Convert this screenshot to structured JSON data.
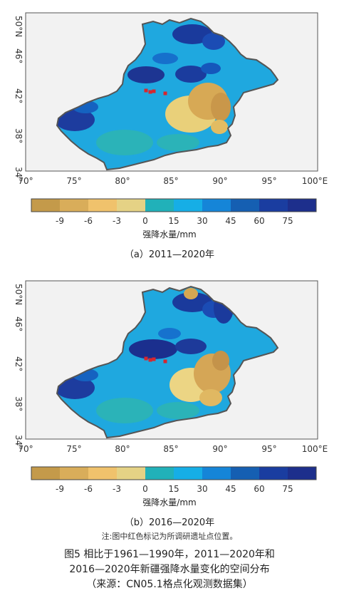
{
  "map_a": {
    "caption": "（a）2011—2020年",
    "lat_labels": [
      "50°N",
      "46°",
      "42°",
      "38°",
      "34°"
    ],
    "lon_labels": [
      "70°",
      "75°",
      "80°",
      "85°",
      "90°",
      "95°",
      "100°E"
    ],
    "legend": {
      "title": "强降水量/mm",
      "ticks": [
        "-9",
        "-6",
        "-3",
        "0",
        "15",
        "30",
        "45",
        "60",
        "75"
      ],
      "colors": [
        "#c49a4a",
        "#d9ad5a",
        "#f0c26c",
        "#e5d285",
        "#21b1b9",
        "#16aee6",
        "#1585d8",
        "#155fb2",
        "#1a3da0",
        "#1d2f8c"
      ]
    }
  },
  "map_b": {
    "caption": "（b）2016—2020年",
    "lat_labels": [
      "50°N",
      "46°",
      "42°",
      "38°",
      "34°"
    ],
    "lon_labels": [
      "70°",
      "75°",
      "80°",
      "85°",
      "90°",
      "95°",
      "100°E"
    ],
    "legend": {
      "title": "强降水量/mm",
      "ticks": [
        "-9",
        "-6",
        "-3",
        "0",
        "15",
        "30",
        "45",
        "60",
        "75"
      ],
      "colors": [
        "#c49a4a",
        "#d9ad5a",
        "#f0c26c",
        "#e5d285",
        "#21b1b9",
        "#16aee6",
        "#1585d8",
        "#155fb2",
        "#1a3da0",
        "#1d2f8c"
      ]
    }
  },
  "note": "注:图中红色标记为所调研遗址点位置。",
  "figure_caption": {
    "line1": "图5  相比于1961—1990年，2011—2020年和",
    "line2": "2016—2020年新疆强降水量变化的空间分布",
    "line3": "（来源：CN05.1格点化观测数据集）"
  }
}
